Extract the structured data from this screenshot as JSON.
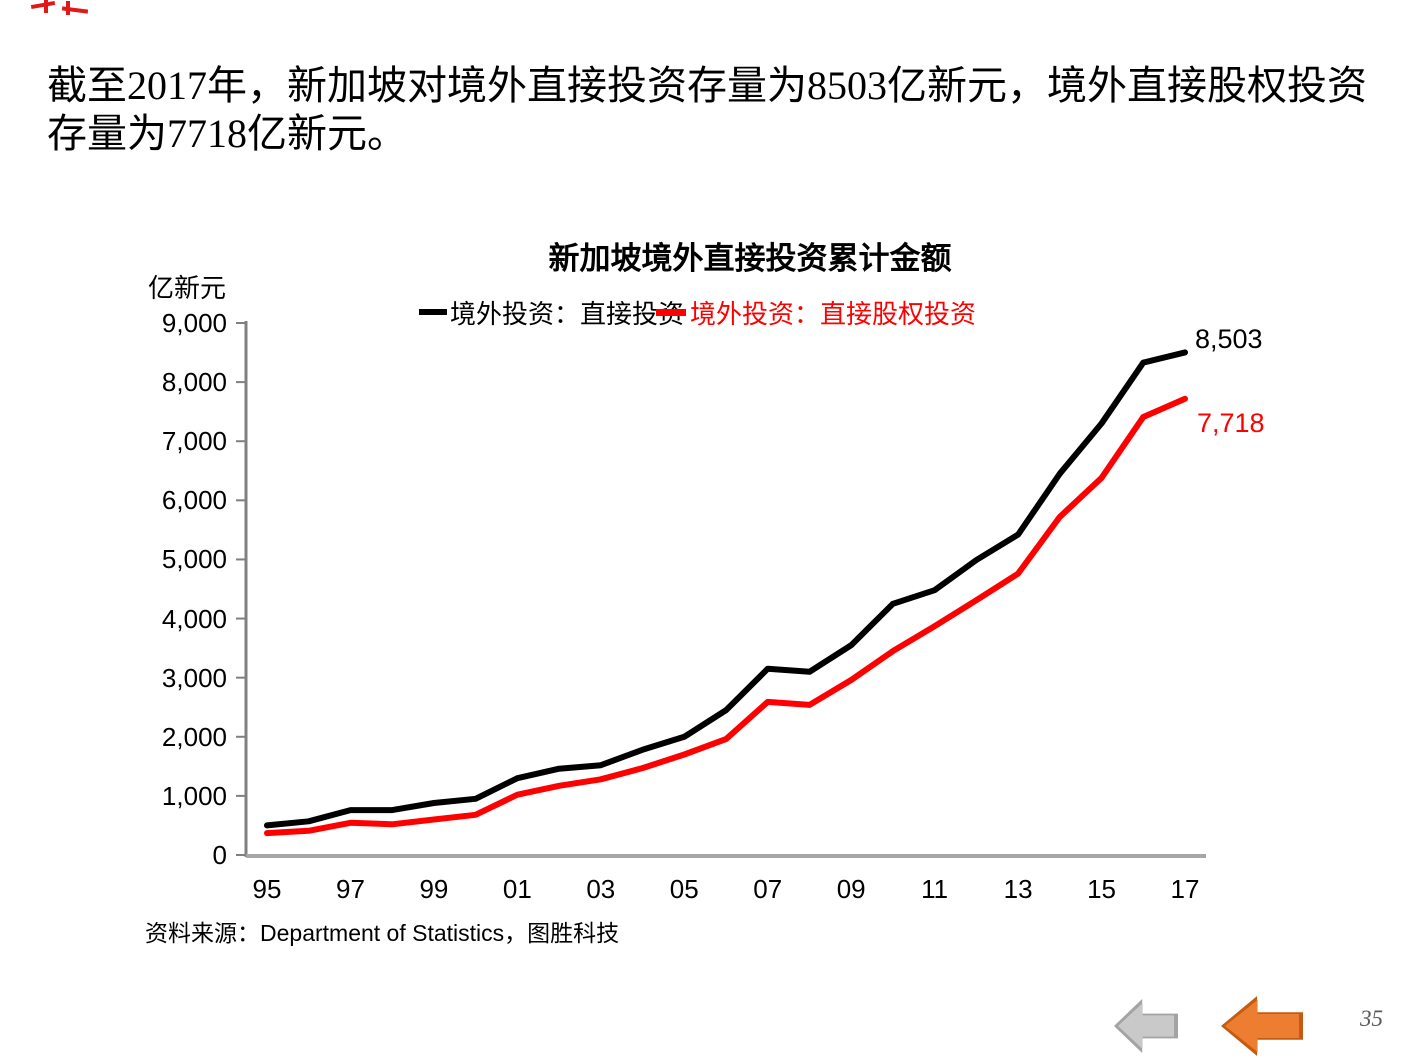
{
  "page": {
    "heading": "截至2017年，新加坡对境外直接投资存量为8503亿新元，境外直接股权投资存量为7718亿新元。",
    "source": "资料来源：Department of Statistics，图胜科技",
    "page_number": "35"
  },
  "chart_data": {
    "type": "line",
    "title": "新加坡境外直接投资累计金额",
    "unit_label": "亿新元",
    "x": [
      "95",
      "96",
      "97",
      "98",
      "99",
      "00",
      "01",
      "02",
      "03",
      "04",
      "05",
      "06",
      "07",
      "08",
      "09",
      "10",
      "11",
      "12",
      "13",
      "14",
      "15",
      "16",
      "17"
    ],
    "x_tick_labels": [
      "95",
      "97",
      "99",
      "01",
      "03",
      "05",
      "07",
      "09",
      "11",
      "13",
      "15",
      "17"
    ],
    "series": [
      {
        "name": "境外投资：直接投资",
        "color": "#000000",
        "end_label": "8,503",
        "values": [
          500,
          570,
          760,
          760,
          880,
          950,
          1300,
          1460,
          1520,
          1780,
          2000,
          2450,
          3150,
          3100,
          3550,
          4250,
          4480,
          4990,
          5420,
          6450,
          7300,
          8330,
          8503
        ]
      },
      {
        "name": "境外投资：直接股权投资",
        "color": "#ff0000",
        "end_label": "7,718",
        "values": [
          370,
          410,
          545,
          520,
          600,
          680,
          1020,
          1170,
          1280,
          1470,
          1700,
          1960,
          2590,
          2540,
          2960,
          3450,
          3870,
          4310,
          4760,
          5720,
          6380,
          7410,
          7718
        ]
      }
    ],
    "ylim": [
      0,
      9000
    ],
    "yticks": [
      0,
      1000,
      2000,
      3000,
      4000,
      5000,
      6000,
      7000,
      8000,
      9000
    ],
    "ytick_labels": [
      "0",
      "1,000",
      "2,000",
      "3,000",
      "4,000",
      "5,000",
      "6,000",
      "7,000",
      "8,000",
      "9,000"
    ],
    "grid": false,
    "legend_position": "top",
    "axis_color": "#808080",
    "x_axis_color": "#a6a6a6"
  },
  "nav": {
    "back_gray_label": "previous-slide",
    "back_orange_label": "back"
  }
}
